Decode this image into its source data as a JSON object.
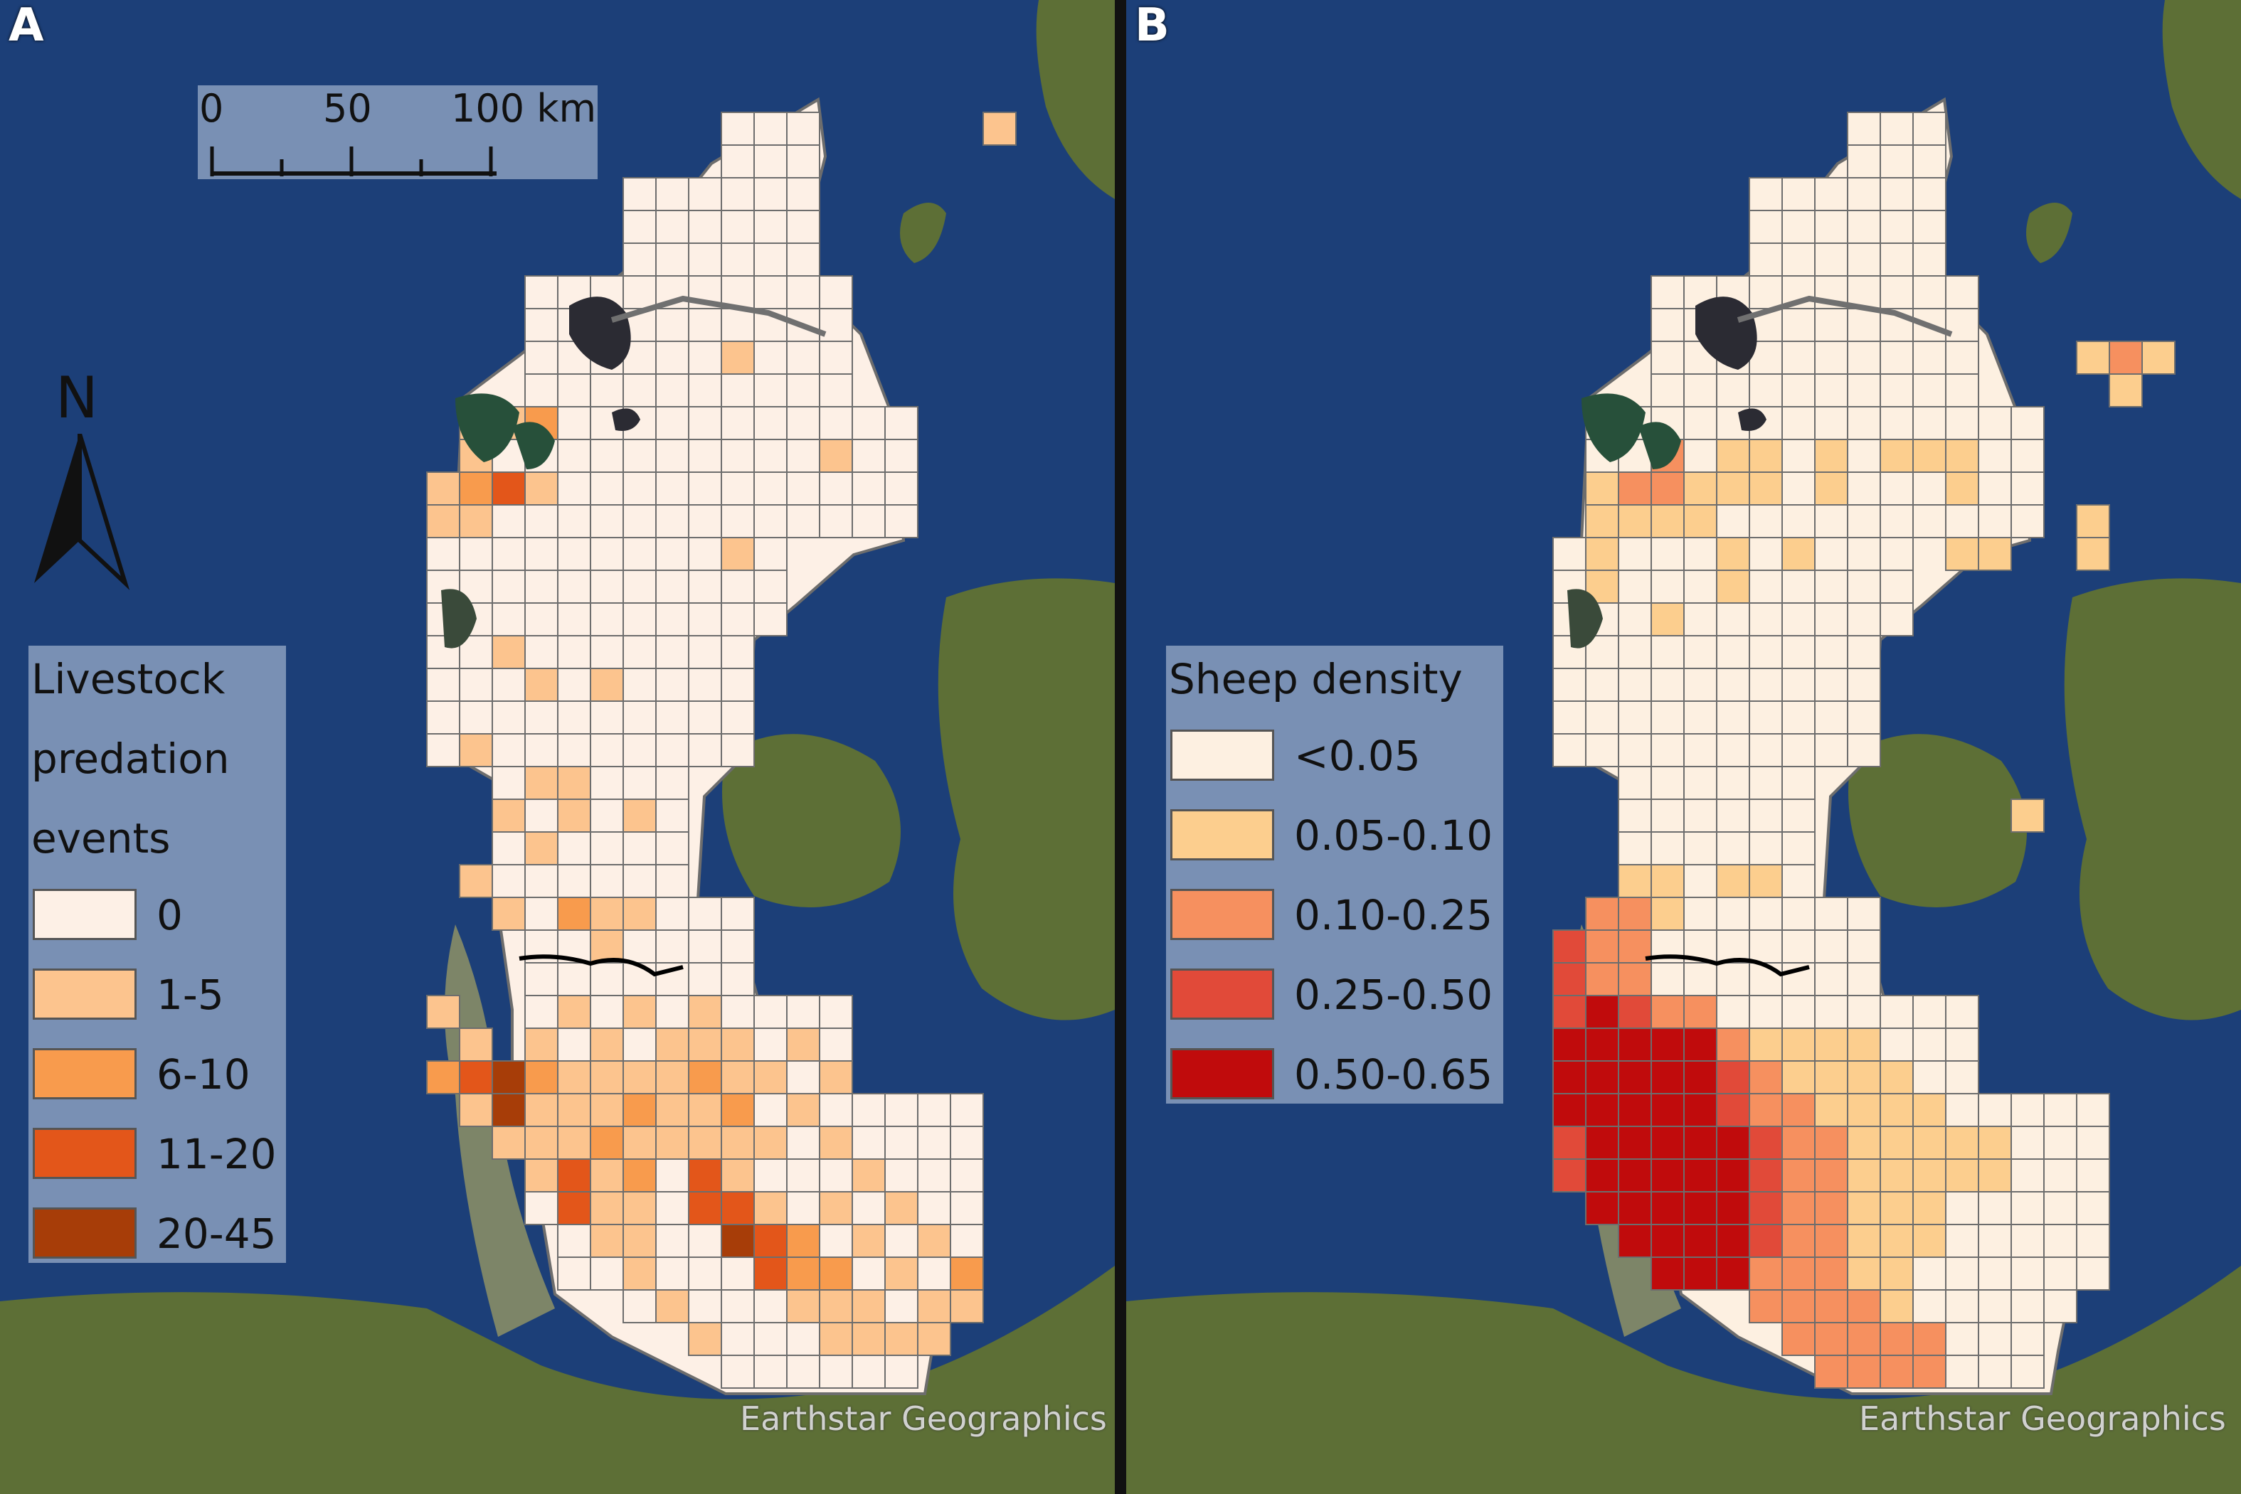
{
  "panels": [
    {
      "letter": "A",
      "legend_title_lines": [
        "Livestock",
        "predation",
        "events"
      ],
      "legend_items": [
        {
          "label": "0",
          "color": "#fdf0e6"
        },
        {
          "label": "1-5",
          "color": "#fcc48e"
        },
        {
          "label": "6-10",
          "color": "#f89b4d"
        },
        {
          "label": "11-20",
          "color": "#e3561a"
        },
        {
          "label": "20-45",
          "color": "#a73d08"
        }
      ],
      "scale_labels": [
        "0",
        "50",
        "100 km"
      ],
      "north_label": "N",
      "attribution": "Earthstar Geographics"
    },
    {
      "letter": "B",
      "legend_title_lines": [
        "Sheep density"
      ],
      "legend_items": [
        {
          "label": "<0.05",
          "color": "#fdf0e1"
        },
        {
          "label": "0.05-0.10",
          "color": "#fcce8e"
        },
        {
          "label": "0.10-0.25",
          "color": "#f6905f"
        },
        {
          "label": "0.25-0.50",
          "color": "#e14a39"
        },
        {
          "label": "0.50-0.65",
          "color": "#c00b0c"
        }
      ],
      "attribution": "Earthstar Geographics"
    }
  ],
  "colors": {
    "sea": "#1c3f78",
    "land": "#5d6f36",
    "mudflat": "#7d8568",
    "grid_line": "#6d6d6d",
    "border_line": "#000000",
    "lake": "#2b2b33"
  }
}
